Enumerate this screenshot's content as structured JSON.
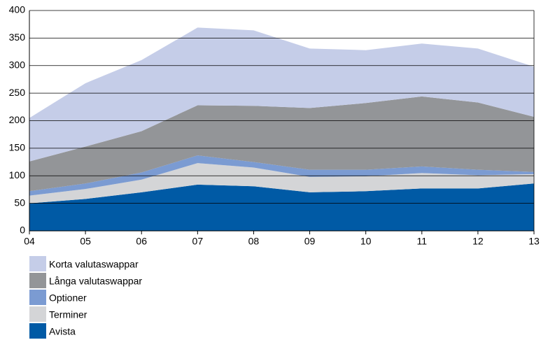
{
  "chart_data": {
    "type": "stacked_area",
    "categories": [
      "04",
      "05",
      "06",
      "07",
      "08",
      "09",
      "10",
      "11",
      "12",
      "13"
    ],
    "series": [
      {
        "name": "Korta valutaswappar",
        "color": "#c5cde8",
        "values": [
          79,
          115,
          129,
          141,
          137,
          108,
          96,
          96,
          98,
          91
        ]
      },
      {
        "name": "Långa valutaswappar",
        "color": "#939598",
        "values": [
          54,
          67,
          75,
          91,
          102,
          112,
          121,
          127,
          122,
          100
        ]
      },
      {
        "name": "Optioner",
        "color": "#7b9bd2",
        "values": [
          8,
          10,
          13,
          14,
          10,
          13,
          12,
          12,
          10,
          4
        ]
      },
      {
        "name": "Terminer",
        "color": "#d4d5d7",
        "values": [
          14,
          18,
          23,
          39,
          34,
          28,
          27,
          28,
          24,
          17
        ]
      },
      {
        "name": "Avista",
        "color": "#005aa5",
        "values": [
          50,
          58,
          70,
          84,
          81,
          70,
          72,
          77,
          77,
          86
        ]
      }
    ],
    "ylim": [
      0,
      400
    ],
    "yticks": [
      0,
      50,
      100,
      150,
      200,
      250,
      300,
      350,
      400
    ],
    "grid": true
  }
}
